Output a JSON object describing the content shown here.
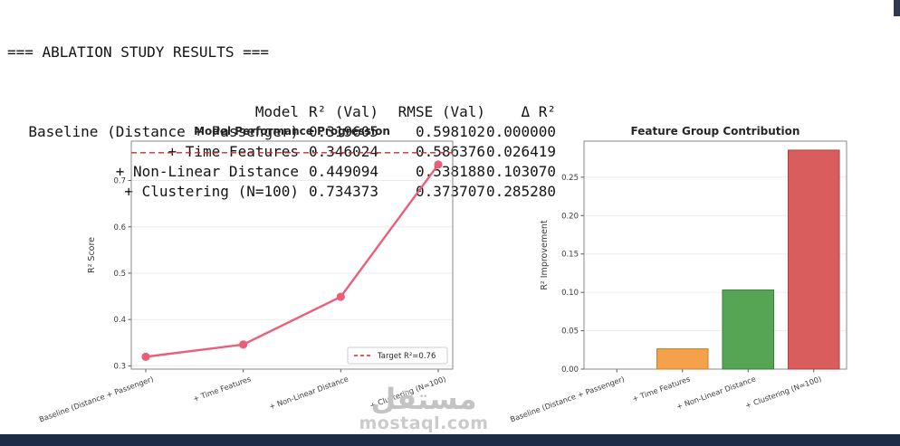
{
  "console": {
    "title": "=== ABLATION STUDY RESULTS ===",
    "columns": [
      "Model",
      "R² (Val)",
      "RMSE (Val)",
      "Δ R²"
    ],
    "rows": [
      [
        "Baseline (Distance + Passenger)",
        "0.319605",
        "0.598102",
        "0.000000"
      ],
      [
        "+ Time Features",
        "0.346024",
        "0.586376",
        "0.026419"
      ],
      [
        "+ Non-Linear Distance",
        "0.449094",
        "0.538188",
        "0.103070"
      ],
      [
        "+ Clustering (N=100)",
        "0.734373",
        "0.373707",
        "0.285280"
      ]
    ]
  },
  "chart_data": [
    {
      "type": "line",
      "title": "Model Performance Progression",
      "xlabel": "",
      "ylabel": "R² Score",
      "categories": [
        "Baseline (Distance + Passenger)",
        "+ Time Features",
        "+ Non-Linear Distance",
        "+ Clustering (N=100)"
      ],
      "values": [
        0.319605,
        0.346024,
        0.449094,
        0.734373
      ],
      "target": {
        "value": 0.76,
        "label": "Target R²=0.76",
        "color": "#d62728"
      },
      "line_color": "#ea5f78",
      "ylim": [
        0.293,
        0.785
      ],
      "yticks": [
        0.3,
        0.4,
        0.5,
        0.6,
        0.7
      ],
      "ytick_labels": [
        "0.3",
        "0.4",
        "0.5",
        "0.6",
        "0.7"
      ],
      "grid": true,
      "legend_position": "lower right"
    },
    {
      "type": "bar",
      "title": "Feature Group Contribution",
      "xlabel": "",
      "ylabel": "R² Improvement",
      "categories": [
        "Baseline (Distance + Passenger)",
        "+ Time Features",
        "+ Non-Linear Distance",
        "+ Clustering (N=100)"
      ],
      "values": [
        0.0,
        0.026419,
        0.10307,
        0.28528
      ],
      "bar_colors": [
        "#999999",
        "#f5a14b",
        "#55a555",
        "#da5d5d"
      ],
      "bar_edge_colors": [
        "#777777",
        "#c77f2e",
        "#3c7c3c",
        "#b04040"
      ],
      "ylim": [
        0,
        0.297
      ],
      "yticks": [
        0.0,
        0.05,
        0.1,
        0.15,
        0.2,
        0.25
      ],
      "ytick_labels": [
        "0.00",
        "0.05",
        "0.10",
        "0.15",
        "0.20",
        "0.25"
      ],
      "grid": true,
      "legend_position": "none"
    }
  ],
  "watermark": {
    "arabic": "مستقل",
    "site": "mostaql.com"
  }
}
